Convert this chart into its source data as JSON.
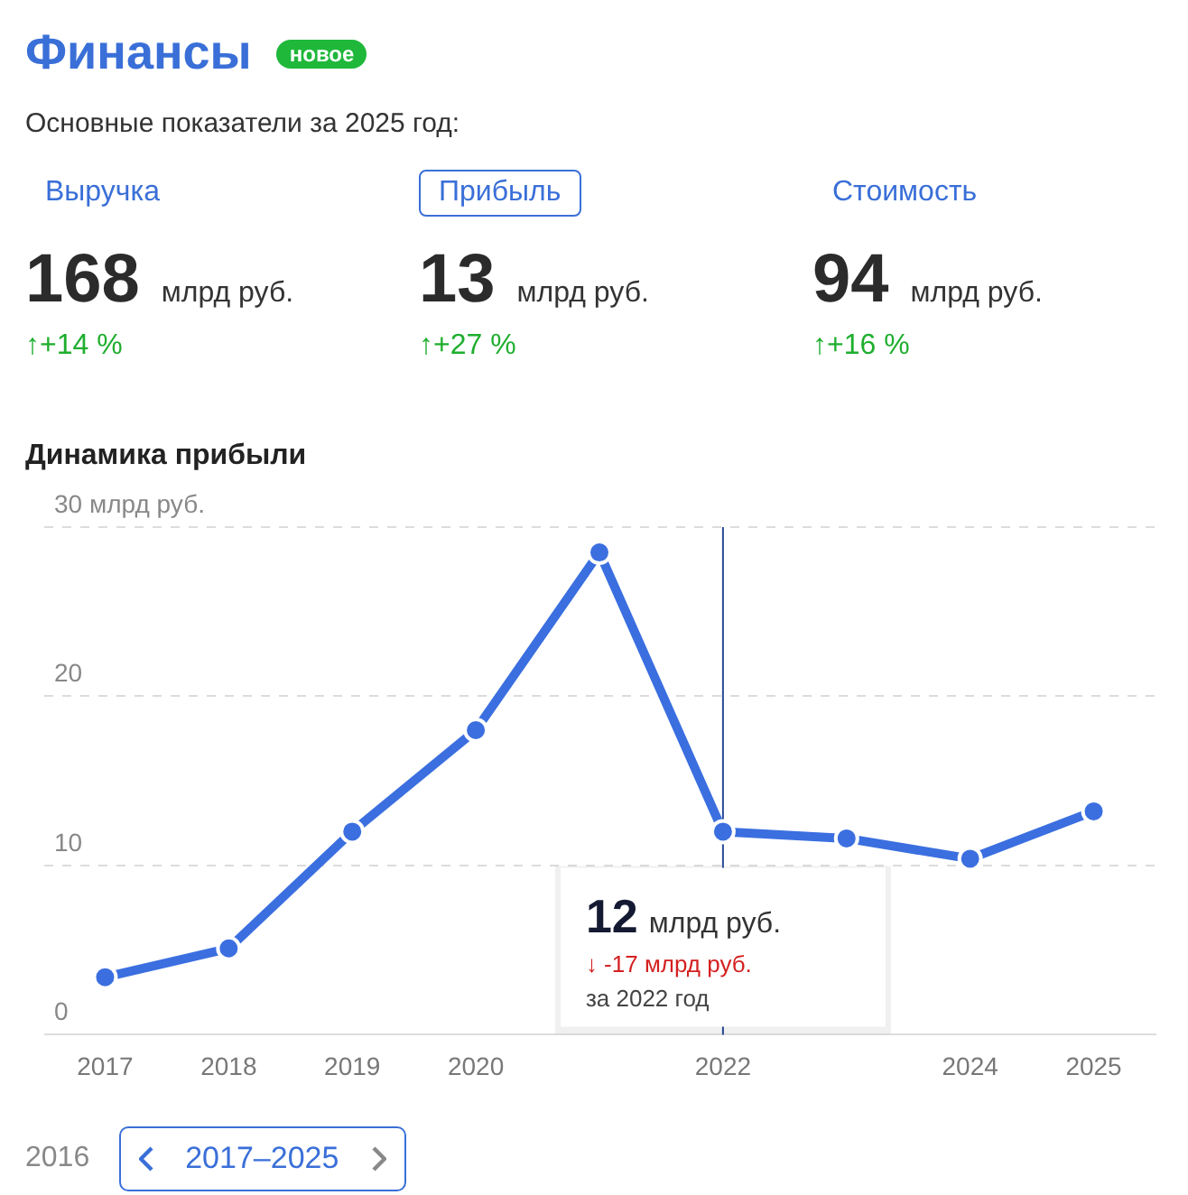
{
  "chart_data": [
    {
      "type": "other",
      "title": "Финансы",
      "subtitle": "Основные показатели за 2025 год:",
      "annotations": [
        "новое",
        "Выручка",
        "168",
        "млрд руб.",
        "↑+14 %",
        "Прибыль",
        "13",
        "млрд руб.",
        "↑+27 %",
        "Стоимость",
        "94",
        "млрд руб.",
        "↑+16 %"
      ]
    },
    {
      "type": "line",
      "title": "Динамика прибыли",
      "categories": [
        "2017",
        "2018",
        "2019",
        "2020",
        null,
        "2022",
        null,
        "2024",
        "2025"
      ],
      "series": [
        {
          "color": "#3b6fe0",
          "values": [
            3.4,
            5.1,
            12.0,
            18.0,
            28.5,
            12,
            11.6,
            10.4,
            13.2
          ]
        }
      ],
      "ylim": [
        0,
        30
      ],
      "yticks": [
        0,
        10,
        20,
        {
          "value": 30,
          "label": "30 млрд руб."
        }
      ],
      "grid": "y",
      "marker": "circle",
      "line_style": "solid",
      "ref_lines": [
        {
          "axis": "x",
          "value": "2022",
          "color": "#2a4a9a"
        }
      ],
      "annotations": [
        {
          "text": "12 млрд руб.",
          "x": "2022",
          "y": 12
        },
        "↓ -17 млрд руб.",
        "за 2022 год",
        "2016",
        "2017–2025"
      ]
    }
  ]
}
